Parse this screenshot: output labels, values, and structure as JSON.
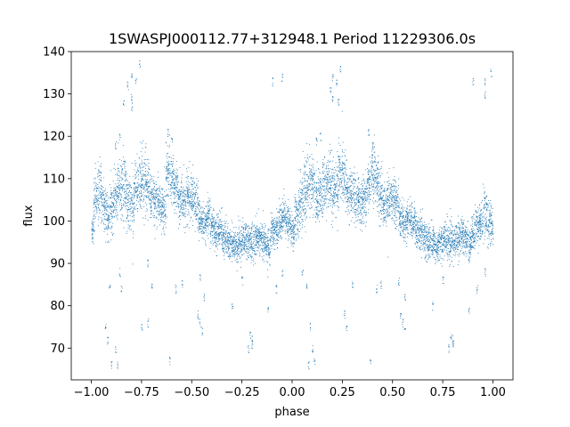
{
  "chart_data": {
    "type": "scatter",
    "title": "1SWASPJ000112.77+312948.1 Period 11229306.0s",
    "xlabel": "phase",
    "ylabel": "flux",
    "xlim": [
      -1.1,
      1.1
    ],
    "ylim": [
      62.5,
      140
    ],
    "xticks": [
      -1.0,
      -0.75,
      -0.5,
      -0.25,
      0.0,
      0.25,
      0.5,
      0.75,
      1.0
    ],
    "xtick_labels": [
      "−1.00",
      "−0.75",
      "−0.50",
      "−0.25",
      "0.00",
      "0.25",
      "0.50",
      "0.75",
      "1.00"
    ],
    "yticks": [
      70,
      80,
      90,
      100,
      110,
      120,
      130,
      140
    ],
    "ytick_labels": [
      "70",
      "80",
      "90",
      "100",
      "110",
      "120",
      "130",
      "140"
    ],
    "grid": false,
    "legend": "none",
    "point_color": "#1f77b4",
    "series": [
      {
        "x": [
          -1.0,
          -0.98,
          -0.96,
          -0.94,
          -0.92,
          -0.9,
          -0.88,
          -0.86,
          -0.84,
          -0.82,
          -0.8,
          -0.78,
          -0.76,
          -0.74,
          -0.72,
          -0.7,
          -0.68,
          -0.66,
          -0.64,
          -0.62,
          -0.6,
          -0.58,
          -0.56,
          -0.54,
          -0.52,
          -0.5,
          -0.48,
          -0.46,
          -0.44,
          -0.42,
          -0.4,
          -0.38,
          -0.36,
          -0.34,
          -0.32,
          -0.3,
          -0.28,
          -0.26,
          -0.24,
          -0.22,
          -0.2,
          -0.18,
          -0.16,
          -0.14,
          -0.12,
          -0.1,
          -0.08,
          -0.06,
          -0.04,
          -0.02,
          0.0,
          0.02,
          0.04,
          0.06,
          0.08,
          0.1,
          0.12,
          0.14,
          0.16,
          0.18,
          0.2,
          0.22,
          0.24,
          0.26,
          0.28,
          0.3,
          0.32,
          0.34,
          0.36,
          0.38,
          0.4,
          0.42,
          0.44,
          0.46,
          0.48,
          0.5,
          0.52,
          0.54,
          0.56,
          0.58,
          0.6,
          0.62,
          0.64,
          0.66,
          0.68,
          0.7,
          0.72,
          0.74,
          0.76,
          0.78,
          0.8,
          0.82,
          0.84,
          0.86,
          0.88,
          0.9,
          0.92,
          0.94,
          0.96,
          0.98,
          1.0
        ],
        "y": [
          98.5,
          105,
          107,
          104,
          101,
          103,
          106,
          108,
          109,
          105,
          104,
          107,
          109,
          111,
          108,
          106,
          105,
          104,
          103,
          112,
          110,
          108,
          105,
          104,
          106,
          105,
          104,
          101,
          99,
          101,
          99,
          97,
          98,
          96,
          95,
          95,
          94,
          95,
          96,
          95,
          95,
          96,
          96,
          95,
          94,
          97,
          98,
          100,
          101,
          100,
          98,
          101,
          104,
          107,
          109,
          108,
          106,
          107,
          108,
          110,
          107,
          108,
          111,
          110,
          107,
          106,
          105,
          104,
          105,
          109,
          112,
          110,
          106,
          104,
          105,
          106,
          104,
          101,
          99,
          101,
          100,
          98,
          97,
          96,
          95,
          95,
          94,
          95,
          96,
          95,
          95,
          96,
          97,
          96,
          95,
          97,
          99,
          100,
          102,
          100,
          98
        ],
        "spread": [
          3,
          5,
          5,
          4,
          4,
          4,
          4,
          5,
          5,
          5,
          5,
          5,
          5,
          5,
          4,
          4,
          4,
          4,
          4,
          5,
          4,
          4,
          4,
          4,
          4,
          4,
          4,
          3,
          3,
          3,
          3,
          3,
          3,
          3,
          3,
          3,
          3,
          3,
          3,
          3,
          3,
          3,
          3,
          3,
          3,
          3,
          3,
          3,
          3,
          3,
          3,
          4,
          5,
          5,
          5,
          5,
          4,
          4,
          4,
          5,
          5,
          5,
          5,
          5,
          4,
          4,
          4,
          4,
          4,
          4,
          5,
          4,
          4,
          4,
          4,
          4,
          4,
          3,
          3,
          3,
          3,
          3,
          3,
          3,
          3,
          3,
          3,
          3,
          3,
          3,
          3,
          3,
          3,
          3,
          3,
          3,
          3,
          3,
          4,
          4,
          3
        ],
        "outliers": [
          [
            -0.9,
            66
          ],
          [
            -0.87,
            66
          ],
          [
            -0.88,
            70
          ],
          [
            -0.92,
            72
          ],
          [
            -0.93,
            75
          ],
          [
            -0.91,
            85
          ],
          [
            -0.86,
            88
          ],
          [
            -0.85,
            84
          ],
          [
            -0.8,
            134
          ],
          [
            -0.78,
            133
          ],
          [
            -0.76,
            137
          ],
          [
            -0.82,
            132
          ],
          [
            -0.84,
            128
          ],
          [
            -0.8,
            127
          ],
          [
            -0.75,
            75
          ],
          [
            -0.72,
            76
          ],
          [
            -0.7,
            85
          ],
          [
            -0.72,
            90
          ],
          [
            -0.61,
            67
          ],
          [
            -0.58,
            84
          ],
          [
            -0.55,
            85
          ],
          [
            -0.47,
            78
          ],
          [
            -0.46,
            76
          ],
          [
            -0.45,
            74
          ],
          [
            -0.44,
            82
          ],
          [
            -0.46,
            87
          ],
          [
            -0.3,
            80
          ],
          [
            -0.25,
            86
          ],
          [
            -0.21,
            73
          ],
          [
            -0.2,
            72
          ],
          [
            -0.2,
            71
          ],
          [
            -0.22,
            70
          ],
          [
            -0.12,
            79
          ],
          [
            -0.08,
            84
          ],
          [
            -0.05,
            88
          ],
          [
            0.08,
            66
          ],
          [
            0.11,
            67
          ],
          [
            0.1,
            70
          ],
          [
            0.09,
            75
          ],
          [
            0.07,
            85
          ],
          [
            0.05,
            88
          ],
          [
            0.2,
            134
          ],
          [
            0.22,
            133
          ],
          [
            0.24,
            136
          ],
          [
            0.19,
            131
          ],
          [
            0.23,
            128
          ],
          [
            0.26,
            78
          ],
          [
            0.27,
            75
          ],
          [
            0.3,
            85
          ],
          [
            0.39,
            67
          ],
          [
            0.42,
            84
          ],
          [
            0.44,
            85
          ],
          [
            0.54,
            78
          ],
          [
            0.55,
            76
          ],
          [
            0.56,
            74
          ],
          [
            0.56,
            82
          ],
          [
            0.53,
            86
          ],
          [
            0.7,
            80
          ],
          [
            0.75,
            86
          ],
          [
            0.79,
            73
          ],
          [
            0.8,
            72
          ],
          [
            0.8,
            71
          ],
          [
            0.78,
            70
          ],
          [
            0.88,
            79
          ],
          [
            0.92,
            84
          ],
          [
            0.96,
            88
          ],
          [
            -0.88,
            118
          ],
          [
            -0.86,
            120
          ],
          [
            -0.62,
            121
          ],
          [
            -0.6,
            119
          ],
          [
            0.38,
            121
          ],
          [
            0.4,
            118
          ],
          [
            0.12,
            119
          ],
          [
            0.14,
            120
          ],
          [
            -0.8,
            129
          ],
          [
            0.2,
            129
          ],
          [
            0.96,
            130
          ],
          [
            0.96,
            133
          ],
          [
            0.99,
            135
          ],
          [
            0.9,
            133
          ],
          [
            -0.1,
            133
          ],
          [
            -0.05,
            134
          ]
        ]
      }
    ]
  }
}
